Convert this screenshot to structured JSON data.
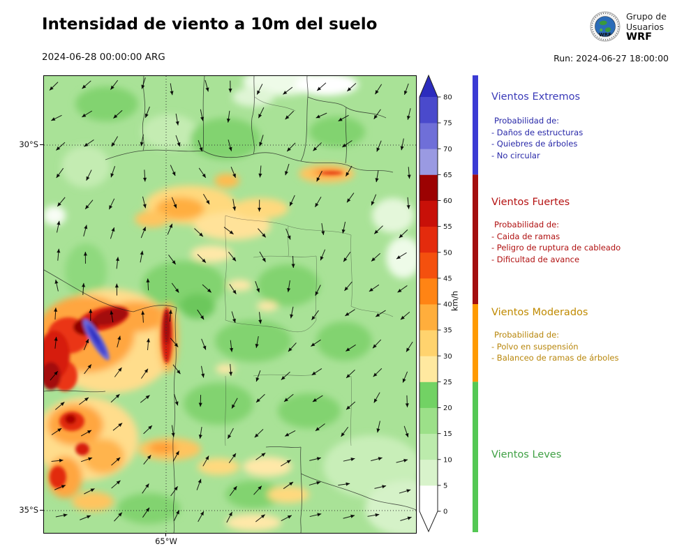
{
  "header": {
    "title": "Intensidad de viento a 10m del suelo",
    "valid_time": "2024-06-28 00:00:00 ARG",
    "run_label": "Run: 2024-06-27 18:00:00",
    "logo": {
      "line1": "Grupo de",
      "line2": "Usuarios",
      "line3": "WRF"
    }
  },
  "map": {
    "lat_ticks": [
      "30°S",
      "35°S"
    ],
    "lon_tick": "65°W"
  },
  "colorbar": {
    "unit": "km/h",
    "tick_values": [
      0,
      5,
      10,
      15,
      20,
      25,
      30,
      35,
      40,
      45,
      50,
      55,
      60,
      65,
      70,
      75,
      80
    ],
    "segment_colors": [
      "#ffffff",
      "#d8f3cb",
      "#bcebac",
      "#9ce089",
      "#72d264",
      "#ffe9a0",
      "#ffd36e",
      "#ffae3c",
      "#ff8414",
      "#f4500e",
      "#e42b0d",
      "#c81008",
      "#9c0202",
      "#9a9ae2",
      "#6f6fd8",
      "#4a4acc"
    ],
    "over_color": "#2b2bbd",
    "under_color": "#ffffff"
  },
  "categories": [
    {
      "title": "Vientos Extremos",
      "title_color": "#3a3ab8",
      "text_color": "#2828a8",
      "bar_color": "#3b3bd4",
      "range_kmh": [
        65,
        null
      ],
      "prob_header": "Probabilidad de:",
      "items": [
        "- Daños de estructuras",
        "- Quiebres de árboles",
        "- No circular"
      ]
    },
    {
      "title": "Vientos Fuertes",
      "title_color": "#b51212",
      "text_color": "#b01010",
      "bar_color": "#a40f0f",
      "range_kmh": [
        40,
        65
      ],
      "prob_header": "Probabilidad de:",
      "items": [
        "- Caida de ramas",
        "- Peligro de ruptura de cableado",
        "- Dificultad de avance"
      ]
    },
    {
      "title": "Vientos Moderados",
      "title_color": "#c08a00",
      "text_color": "#b8860b",
      "bar_color": "#ff9a00",
      "range_kmh": [
        25,
        40
      ],
      "prob_header": "Probabilidad de:",
      "items": [
        "- Polvo en suspensión",
        "- Balanceo de ramas de árboles"
      ]
    },
    {
      "title": "Vientos Leves",
      "title_color": "#3fa044",
      "text_color": "#3fa044",
      "bar_color": "#54c854",
      "range_kmh": [
        0,
        25
      ],
      "prob_header": "",
      "items": []
    }
  ]
}
